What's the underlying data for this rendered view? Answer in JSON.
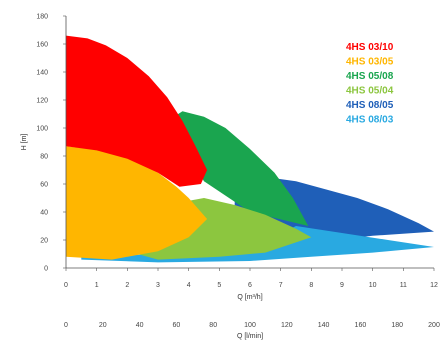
{
  "chart_data": {
    "type": "area",
    "title": "",
    "xlabel": "Q [m³/h]",
    "x2label": "Q [l/min]",
    "ylabel": "H [m]",
    "xlim": [
      0,
      12
    ],
    "x2lim": [
      0,
      200
    ],
    "ylim": [
      0,
      180
    ],
    "x_ticks": [
      "0",
      "1",
      "2",
      "3",
      "4",
      "5",
      "6",
      "7",
      "8",
      "9",
      "10",
      "11",
      "12"
    ],
    "x2_ticks": [
      "0",
      "20",
      "40",
      "60",
      "80",
      "100",
      "120",
      "140",
      "160",
      "180",
      "200"
    ],
    "y_ticks": [
      "0",
      "20",
      "40",
      "60",
      "80",
      "100",
      "120",
      "140",
      "160",
      "180"
    ],
    "grid": false,
    "legend_position": "top-right",
    "series": [
      {
        "name": "4HS 08/05",
        "color": "#1f5fb8",
        "upper": [
          [
            5.5,
            68
          ],
          [
            6.5,
            65
          ],
          [
            7.5,
            62
          ],
          [
            8.5,
            56
          ],
          [
            9.5,
            50
          ],
          [
            10.5,
            42
          ],
          [
            11.5,
            32
          ],
          [
            12.0,
            26
          ]
        ],
        "lower": [
          [
            5.5,
            10
          ],
          [
            8.0,
            18
          ],
          [
            10.0,
            23
          ],
          [
            12.0,
            26
          ]
        ]
      },
      {
        "name": "4HS 08/03",
        "color": "#29a9e1",
        "upper": [
          [
            0.5,
            8
          ],
          [
            3.0,
            10
          ],
          [
            6.0,
            14
          ],
          [
            7.5,
            30
          ],
          [
            9.0,
            25
          ],
          [
            10.5,
            20
          ],
          [
            12.0,
            15
          ]
        ],
        "lower": [
          [
            0.5,
            6
          ],
          [
            3.0,
            4
          ],
          [
            6.0,
            5
          ],
          [
            8.0,
            8
          ],
          [
            10.0,
            11
          ],
          [
            12.0,
            15
          ]
        ]
      },
      {
        "name": "4HS 05/08",
        "color": "#1aa54f",
        "upper": [
          [
            3.3,
            105
          ],
          [
            3.8,
            112
          ],
          [
            4.5,
            108
          ],
          [
            5.2,
            100
          ],
          [
            6.0,
            85
          ],
          [
            6.8,
            68
          ],
          [
            7.4,
            50
          ],
          [
            7.9,
            30
          ]
        ],
        "lower": [
          [
            3.3,
            105
          ],
          [
            4.5,
            62
          ],
          [
            6.0,
            40
          ],
          [
            7.9,
            30
          ]
        ]
      },
      {
        "name": "4HS 05/04",
        "color": "#8cc63f",
        "upper": [
          [
            1.5,
            15
          ],
          [
            2.5,
            30
          ],
          [
            3.5,
            46
          ],
          [
            4.5,
            50
          ],
          [
            5.5,
            45
          ],
          [
            6.5,
            38
          ],
          [
            7.5,
            28
          ],
          [
            8.0,
            22
          ]
        ],
        "lower": [
          [
            1.5,
            15
          ],
          [
            3.0,
            6
          ],
          [
            5.0,
            8
          ],
          [
            6.5,
            11
          ],
          [
            8.0,
            22
          ]
        ]
      },
      {
        "name": "4HS 03/05",
        "color": "#ffb600",
        "upper": [
          [
            0.0,
            87
          ],
          [
            0.8,
            85
          ],
          [
            1.6,
            82
          ],
          [
            2.4,
            75
          ],
          [
            3.0,
            68
          ],
          [
            3.6,
            58
          ],
          [
            4.0,
            50
          ],
          [
            4.6,
            35
          ]
        ],
        "lower": [
          [
            0.0,
            8
          ],
          [
            1.5,
            6
          ],
          [
            3.0,
            12
          ],
          [
            4.0,
            22
          ],
          [
            4.6,
            35
          ]
        ]
      },
      {
        "name": "4HS 03/10",
        "color": "#ff0000",
        "upper": [
          [
            0.0,
            166
          ],
          [
            0.7,
            164
          ],
          [
            1.3,
            159
          ],
          [
            2.0,
            150
          ],
          [
            2.7,
            137
          ],
          [
            3.3,
            122
          ],
          [
            3.8,
            105
          ],
          [
            4.2,
            88
          ],
          [
            4.6,
            70
          ],
          [
            4.4,
            60
          ]
        ],
        "lower": [
          [
            0.0,
            87
          ],
          [
            1.0,
            84
          ],
          [
            2.0,
            78
          ],
          [
            3.0,
            68
          ],
          [
            3.7,
            58
          ],
          [
            4.4,
            60
          ]
        ]
      }
    ],
    "legend": [
      {
        "name": "4HS 03/10",
        "color": "#ff0000"
      },
      {
        "name": "4HS 03/05",
        "color": "#ffb600"
      },
      {
        "name": "4HS 05/08",
        "color": "#1aa54f"
      },
      {
        "name": "4HS 05/04",
        "color": "#8cc63f"
      },
      {
        "name": "4HS 08/05",
        "color": "#1f5fb8"
      },
      {
        "name": "4HS 08/03",
        "color": "#29a9e1"
      }
    ]
  }
}
